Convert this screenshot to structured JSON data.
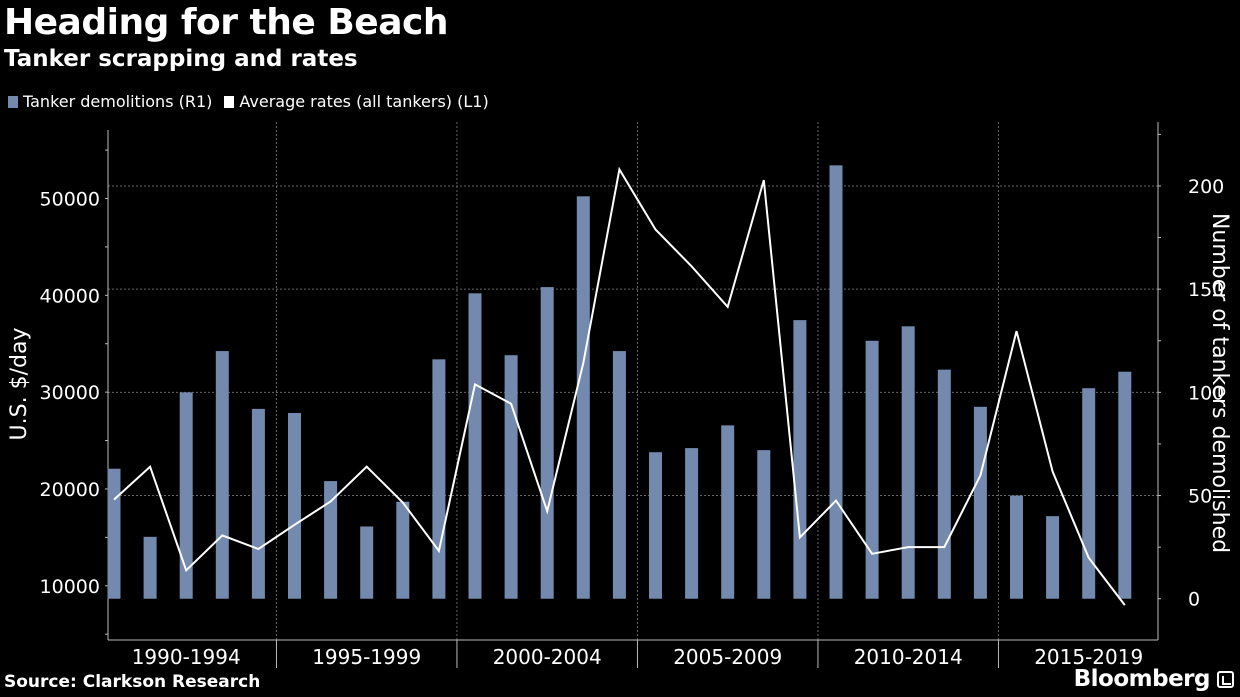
{
  "header": {
    "title": "Heading for the Beach",
    "subtitle": "Tanker scrapping and rates"
  },
  "legend": {
    "bars_label": "Tanker demolitions (R1)",
    "line_label": "Average rates (all tankers) (L1)"
  },
  "footer": {
    "source": "Source: Clarkson Research",
    "brand": "Bloomberg"
  },
  "colors": {
    "bar": "#7389ad",
    "line": "#ffffff",
    "grid": "#666666",
    "background": "#000000"
  },
  "chart_data": {
    "type": "bar+line",
    "title": "Heading for the Beach",
    "subtitle": "Tanker scrapping and rates",
    "years": [
      1990,
      1991,
      1992,
      1993,
      1994,
      1995,
      1996,
      1997,
      1998,
      1999,
      2000,
      2001,
      2002,
      2003,
      2004,
      2005,
      2006,
      2007,
      2008,
      2009,
      2010,
      2011,
      2012,
      2013,
      2014,
      2015,
      2016,
      2017,
      2018,
      2019
    ],
    "x_tick_labels": [
      "1990-1994",
      "1995-1999",
      "2000-2004",
      "2005-2009",
      "2010-2014",
      "2015-2019"
    ],
    "series": [
      {
        "name": "Tanker demolitions (R1)",
        "type": "bar",
        "axis": "right",
        "values": [
          63,
          30,
          100,
          120,
          92,
          90,
          57,
          35,
          47,
          116,
          148,
          118,
          151,
          195,
          120,
          71,
          73,
          84,
          72,
          135,
          210,
          125,
          132,
          111,
          93,
          50,
          40,
          102,
          110,
          0
        ]
      },
      {
        "name": "Average rates (all tankers) (L1)",
        "type": "line",
        "axis": "left",
        "values": [
          18900,
          22300,
          11600,
          15200,
          13800,
          16300,
          18700,
          22300,
          18600,
          13600,
          30800,
          28800,
          17700,
          33000,
          53000,
          46800,
          43000,
          38800,
          51900,
          15000,
          18800,
          13300,
          14000,
          14000,
          21400,
          36300,
          21800,
          12900,
          8000,
          null
        ]
      }
    ],
    "left_axis": {
      "label": "U.S. $/day",
      "ticks": [
        10000,
        20000,
        30000,
        40000,
        50000
      ],
      "range": [
        4400,
        57900
      ]
    },
    "right_axis": {
      "label": "Number of tankers demolished",
      "ticks": [
        0,
        50,
        100,
        150,
        200
      ],
      "range": [
        -20,
        231
      ]
    },
    "grid": true,
    "legend_position": "top-left"
  }
}
